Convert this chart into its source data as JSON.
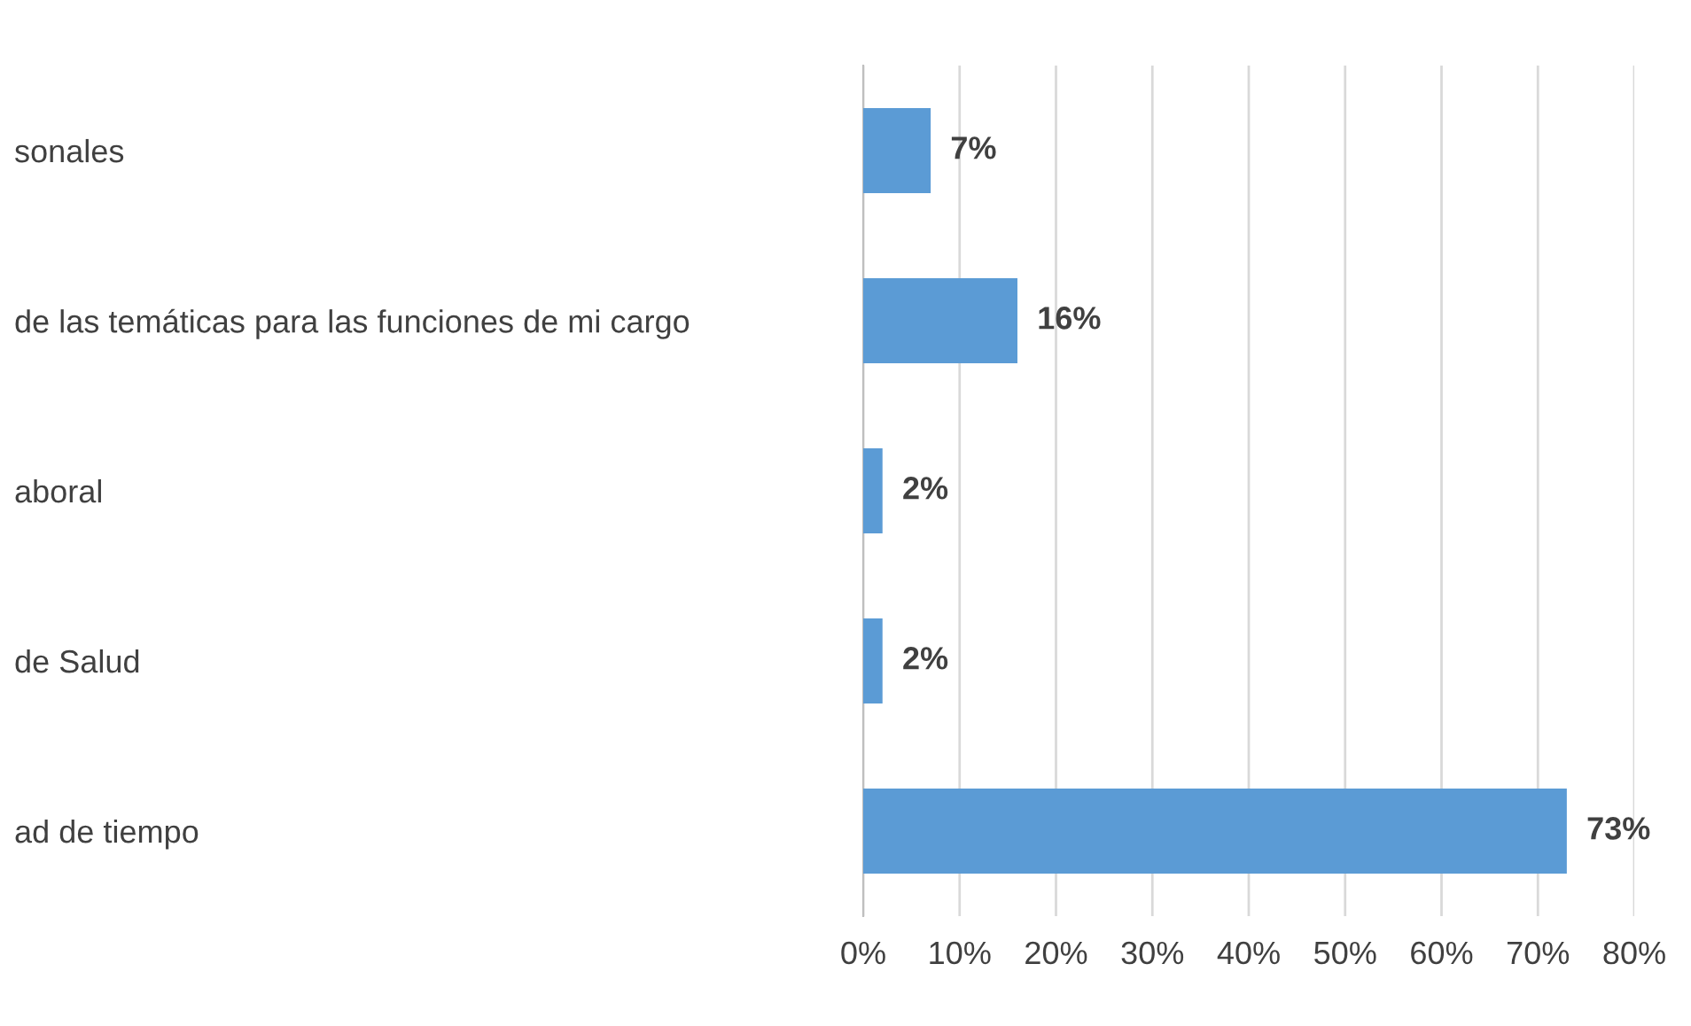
{
  "chart_data": {
    "type": "bar",
    "orientation": "horizontal",
    "categories": [
      "sonales",
      "de las temáticas para las funciones de mi cargo",
      "aboral",
      "de Salud",
      "ad de tiempo"
    ],
    "values": [
      7,
      16,
      2,
      2,
      73
    ],
    "color": "#5b9bd5",
    "value_labels": [
      "7%",
      "16%",
      "2%",
      "2%",
      "73%"
    ],
    "xlim": [
      0,
      80
    ],
    "xticks": [
      {
        "value": 0,
        "label": "0%"
      },
      {
        "value": 10,
        "label": "10%"
      },
      {
        "value": 20,
        "label": "20%"
      },
      {
        "value": 30,
        "label": "30%"
      },
      {
        "value": 40,
        "label": "40%"
      },
      {
        "value": 50,
        "label": "50%"
      },
      {
        "value": 60,
        "label": "60%"
      },
      {
        "value": 70,
        "label": "70%"
      },
      {
        "value": 80,
        "label": "80%"
      }
    ],
    "grid": "x",
    "legend": false
  }
}
